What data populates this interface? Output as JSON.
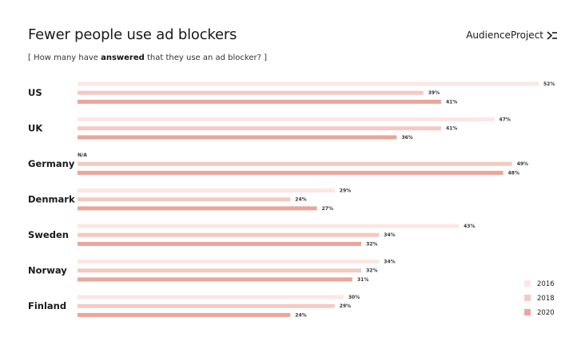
{
  "header": {
    "title": "Fewer people use ad blockers",
    "subtitle_prefix": "[ How many have ",
    "subtitle_bold": "answered",
    "subtitle_suffix": " that they use an ad blocker? ]",
    "logo_text": "AudienceProject"
  },
  "colors": {
    "2016": "#fbe7e5",
    "2018": "#f5c9c3",
    "2020": "#eba59b"
  },
  "chart_data": {
    "type": "bar",
    "orientation": "horizontal",
    "categories": [
      "US",
      "UK",
      "Germany",
      "Denmark",
      "Sweden",
      "Norway",
      "Finland"
    ],
    "series": [
      {
        "name": "2016",
        "values": [
          52,
          47,
          null,
          29,
          43,
          34,
          30
        ],
        "labels": [
          "52%",
          "47%",
          "N/A",
          "29%",
          "43%",
          "34%",
          "30%"
        ]
      },
      {
        "name": "2018",
        "values": [
          39,
          41,
          49,
          24,
          34,
          32,
          29
        ],
        "labels": [
          "39%",
          "41%",
          "49%",
          "24%",
          "34%",
          "32%",
          "29%"
        ]
      },
      {
        "name": "2020",
        "values": [
          41,
          36,
          48,
          27,
          32,
          31,
          24
        ],
        "labels": [
          "41%",
          "36%",
          "48%",
          "27%",
          "32%",
          "31%",
          "24%"
        ]
      }
    ],
    "legend": [
      "2016",
      "2018",
      "2020"
    ],
    "legend_position": "bottom-right",
    "xlim": [
      0,
      52
    ],
    "grid": false
  }
}
